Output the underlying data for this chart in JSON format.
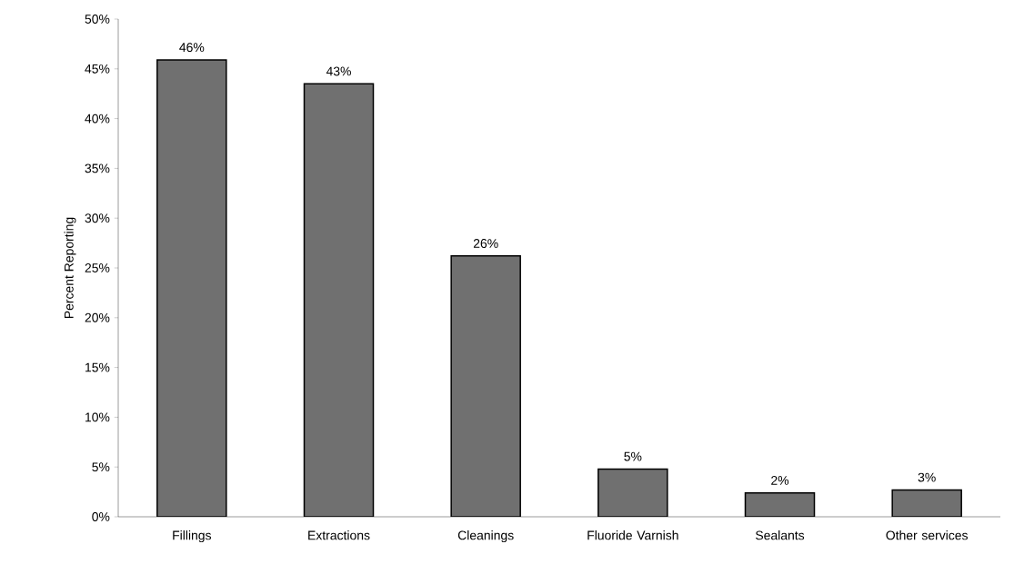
{
  "chart_data": {
    "type": "bar",
    "ylabel": "Percent Reporting",
    "categories": [
      "Fillings",
      "Extractions",
      "Cleanings",
      "Fluoride Varnish",
      "Sealants",
      "Other services"
    ],
    "values": [
      45.9,
      43.5,
      26.2,
      4.8,
      2.4,
      2.7
    ],
    "value_labels": [
      "46%",
      "43%",
      "26%",
      "5%",
      "2%",
      "3%"
    ],
    "color": "#707070",
    "ylim": [
      0,
      50
    ],
    "yticks": [
      {
        "value": 0,
        "label": "0%"
      },
      {
        "value": 5,
        "label": "5%"
      },
      {
        "value": 10,
        "label": "10%"
      },
      {
        "value": 15,
        "label": "15%"
      },
      {
        "value": 20,
        "label": "20%"
      },
      {
        "value": 25,
        "label": "25%"
      },
      {
        "value": 30,
        "label": "30%"
      },
      {
        "value": 35,
        "label": "35%"
      },
      {
        "value": 40,
        "label": "40%"
      },
      {
        "value": 45,
        "label": "45%"
      },
      {
        "value": 50,
        "label": "50%"
      }
    ]
  }
}
